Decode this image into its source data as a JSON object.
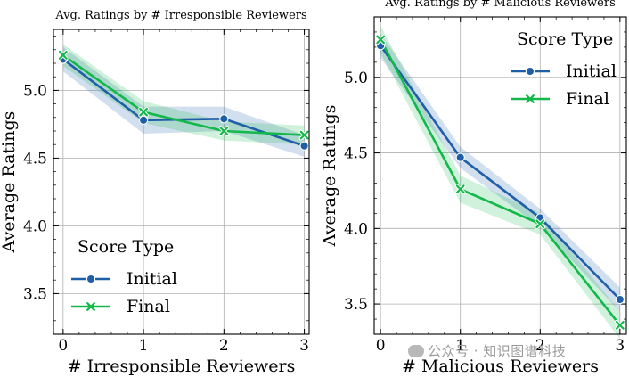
{
  "watermark": "公众号 · 知识图谱科技",
  "chart_data": [
    {
      "type": "line",
      "title": "Avg. Ratings by # Irresponsible Reviewers",
      "xlabel": "# Irresponsible Reviewers",
      "ylabel": "Average Ratings",
      "x": [
        0,
        1,
        2,
        3
      ],
      "xlim": [
        -0.12,
        3.06
      ],
      "ylim": [
        3.2,
        5.45
      ],
      "yticks": [
        "3.5",
        "4.0",
        "4.5",
        "5.0"
      ],
      "xticks": [
        "0",
        "1",
        "2",
        "3"
      ],
      "grid": true,
      "legend": {
        "title": "Score Type",
        "position": "lower-left"
      },
      "series": [
        {
          "name": "Initial",
          "color": "#1f5fa8",
          "marker": "circle",
          "values": [
            5.23,
            4.78,
            4.79,
            4.59
          ],
          "ci_low": [
            5.14,
            4.68,
            4.7,
            4.51
          ],
          "ci_high": [
            5.32,
            4.88,
            4.88,
            4.67
          ]
        },
        {
          "name": "Final",
          "color": "#12b84a",
          "marker": "x",
          "values": [
            5.26,
            4.84,
            4.7,
            4.67
          ],
          "ci_low": [
            5.18,
            4.76,
            4.63,
            4.6
          ],
          "ci_high": [
            5.34,
            4.92,
            4.77,
            4.74
          ]
        }
      ]
    },
    {
      "type": "line",
      "title": "Avg. Ratings by # Malicious Reviewers",
      "xlabel": "# Malicious Reviewers",
      "ylabel": "Average Ratings",
      "x": [
        0,
        1,
        2,
        3
      ],
      "xlim": [
        -0.08,
        3.08
      ],
      "ylim": [
        3.3,
        5.4
      ],
      "yticks": [
        "3.5",
        "4.0",
        "4.5",
        "5.0"
      ],
      "xticks": [
        "0",
        "1",
        "2",
        "3"
      ],
      "grid": true,
      "legend": {
        "title": "Score Type",
        "position": "top-right"
      },
      "series": [
        {
          "name": "Initial",
          "color": "#1f5fa8",
          "marker": "circle",
          "values": [
            5.21,
            4.47,
            4.07,
            3.53
          ],
          "ci_low": [
            5.13,
            4.4,
            4.01,
            3.45
          ],
          "ci_high": [
            5.29,
            4.54,
            4.13,
            3.61
          ]
        },
        {
          "name": "Final",
          "color": "#12b84a",
          "marker": "x",
          "values": [
            5.25,
            4.26,
            4.03,
            3.36
          ],
          "ci_low": [
            5.16,
            4.17,
            3.96,
            3.27
          ],
          "ci_high": [
            5.34,
            4.35,
            4.1,
            3.45
          ]
        }
      ]
    }
  ]
}
